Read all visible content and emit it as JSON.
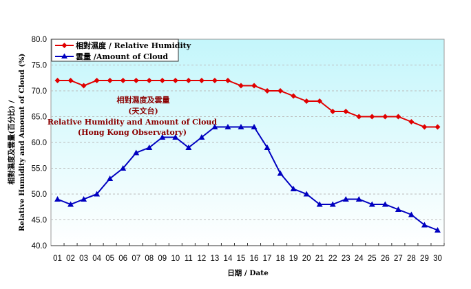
{
  "chart_data": {
    "type": "line",
    "annotation": [
      "相對濕度及雲量",
      "(天文台)",
      "Relative Humidity and Amount of Cloud",
      "(Hong Kong Observatory)"
    ],
    "xlabel": "日期 / Date",
    "ylabel_lines": [
      "相對濕度及雲量(百分比) /",
      "Relative Humidity and Amount of Cloud (%)"
    ],
    "ylim": [
      40,
      80
    ],
    "yticks": [
      "40.0",
      "45.0",
      "50.0",
      "55.0",
      "60.0",
      "65.0",
      "70.0",
      "75.0",
      "80.0"
    ],
    "grid": true,
    "legend_position": "top-left",
    "categories": [
      "01",
      "02",
      "03",
      "04",
      "05",
      "06",
      "07",
      "08",
      "09",
      "10",
      "11",
      "12",
      "13",
      "14",
      "15",
      "16",
      "17",
      "18",
      "19",
      "20",
      "21",
      "22",
      "23",
      "24",
      "25",
      "26",
      "27",
      "28",
      "29",
      "30"
    ],
    "series": [
      {
        "name": "相對濕度 / Relative Humidity",
        "color": "#e00000",
        "marker": "diamond",
        "values": [
          72,
          72,
          71,
          72,
          72,
          72,
          72,
          72,
          72,
          72,
          72,
          72,
          72,
          72,
          71,
          71,
          70,
          70,
          69,
          68,
          68,
          66,
          66,
          65,
          65,
          65,
          65,
          64,
          63,
          63
        ]
      },
      {
        "name": "雲量 /Amount of Cloud",
        "color": "#0000c0",
        "marker": "triangle",
        "values": [
          49,
          48,
          49,
          50,
          53,
          55,
          58,
          59,
          61,
          61,
          59,
          61,
          63,
          63,
          63,
          63,
          59,
          54,
          51,
          50,
          48,
          48,
          49,
          49,
          48,
          48,
          47,
          46,
          44,
          43
        ]
      }
    ]
  }
}
